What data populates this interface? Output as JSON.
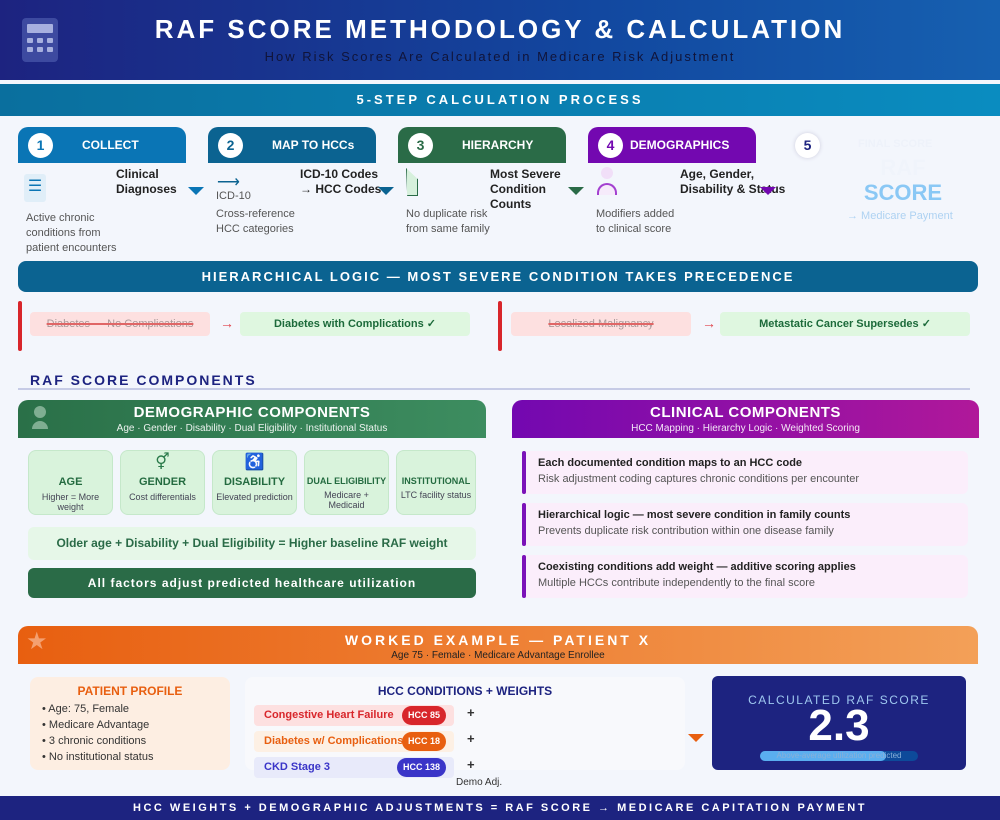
{
  "header": {
    "title": "RAF SCORE METHODOLOGY & CALCULATION",
    "subtitle": "How Risk Scores Are Calculated in Medicare Risk Adjustment",
    "icon": "calculator-icon"
  },
  "steps_banner": "5-STEP CALCULATION PROCESS",
  "steps": [
    {
      "num": "1",
      "label": "COLLECT",
      "main": "Clinical Diagnoses",
      "desc": "Active chronic conditions from patient encounters",
      "color": "#0a75b5"
    },
    {
      "num": "2",
      "label": "MAP TO HCCs",
      "main": "ICD-10 Codes → HCC Codes",
      "sub": "ICD-10",
      "desc": "Cross-reference HCC categories",
      "color": "#0b6391"
    },
    {
      "num": "3",
      "label": "HIERARCHY",
      "main": "Most Severe Condition Counts",
      "desc": "No duplicate risk from same family",
      "color": "#2a6b47"
    },
    {
      "num": "4",
      "label": "DEMOGRAPHICS",
      "main": "Age, Gender, Disability & Status",
      "desc": "Modifiers added to clinical score",
      "color": "#7308b0"
    },
    {
      "num": "5",
      "label": "FINAL SCORE",
      "main1": "RAF",
      "main2": "SCORE",
      "desc": "→ Medicare Payment"
    }
  ],
  "hierarchy": {
    "title": "HIERARCHICAL LOGIC — MOST SEVERE CONDITION TAKES PRECEDENCE",
    "examples": [
      {
        "old": "Diabetes — No Complications",
        "new": "Diabetes with Complications ✓"
      },
      {
        "old": "Localized Malignancy",
        "new": "Metastatic Cancer Supersedes ✓"
      }
    ],
    "arrow": "→"
  },
  "components_title": "RAF SCORE COMPONENTS",
  "demographic": {
    "title": "DEMOGRAPHIC COMPONENTS",
    "subtitle": "Age · Gender · Disability · Dual Eligibility · Institutional Status",
    "tiles": [
      {
        "label": "AGE",
        "desc": "Higher = More weight",
        "icon": ""
      },
      {
        "label": "GENDER",
        "desc": "Cost differentials",
        "icon": "⚥"
      },
      {
        "label": "DISABILITY",
        "desc": "Elevated prediction",
        "icon": "♿"
      },
      {
        "label": "DUAL ELIGIBILITY",
        "desc": "Medicare + Medicaid",
        "icon": ""
      },
      {
        "label": "INSTITUTIONAL",
        "desc": "LTC facility status",
        "icon": ""
      }
    ],
    "formula": "Older age + Disability + Dual Eligibility = Higher baseline RAF weight",
    "footer": "All factors adjust predicted healthcare utilization"
  },
  "clinical": {
    "title": "CLINICAL COMPONENTS",
    "subtitle": "HCC Mapping · Hierarchy Logic · Weighted Scoring",
    "items": [
      {
        "title": "Each documented condition maps to an HCC code",
        "desc": "Risk adjustment coding captures chronic conditions per encounter"
      },
      {
        "title": "Hierarchical logic — most severe condition in family counts",
        "desc": "Prevents duplicate risk contribution within one disease family"
      },
      {
        "title": "Coexisting conditions add weight — additive scoring applies",
        "desc": "Multiple HCCs contribute independently to the final score"
      }
    ]
  },
  "worked_example": {
    "title": "WORKED EXAMPLE — PATIENT X",
    "subtitle": "Age 75 · Female · Medicare Advantage Enrollee",
    "profile": {
      "title": "PATIENT PROFILE",
      "items": [
        "• Age: 75, Female",
        "• Medicare Advantage",
        "• 3 chronic conditions",
        "• No institutional status"
      ]
    },
    "hcc": {
      "title": "HCC CONDITIONS + WEIGHTS",
      "plus": "+",
      "rows": [
        {
          "name": "Congestive Heart Failure",
          "code": "HCC 85"
        },
        {
          "name": "Diabetes w/ Complications",
          "code": "HCC 18"
        },
        {
          "name": "CKD Stage 3",
          "code": "HCC 138"
        }
      ],
      "demo_label": "Demo Adj."
    },
    "score": {
      "label": "CALCULATED RAF SCORE",
      "value": "2.3",
      "note": "Above-average utilization predicted",
      "bar_fraction": 0.8
    }
  },
  "footer": "HCC WEIGHTS + DEMOGRAPHIC ADJUSTMENTS = RAF SCORE → MEDICARE CAPITATION PAYMENT"
}
